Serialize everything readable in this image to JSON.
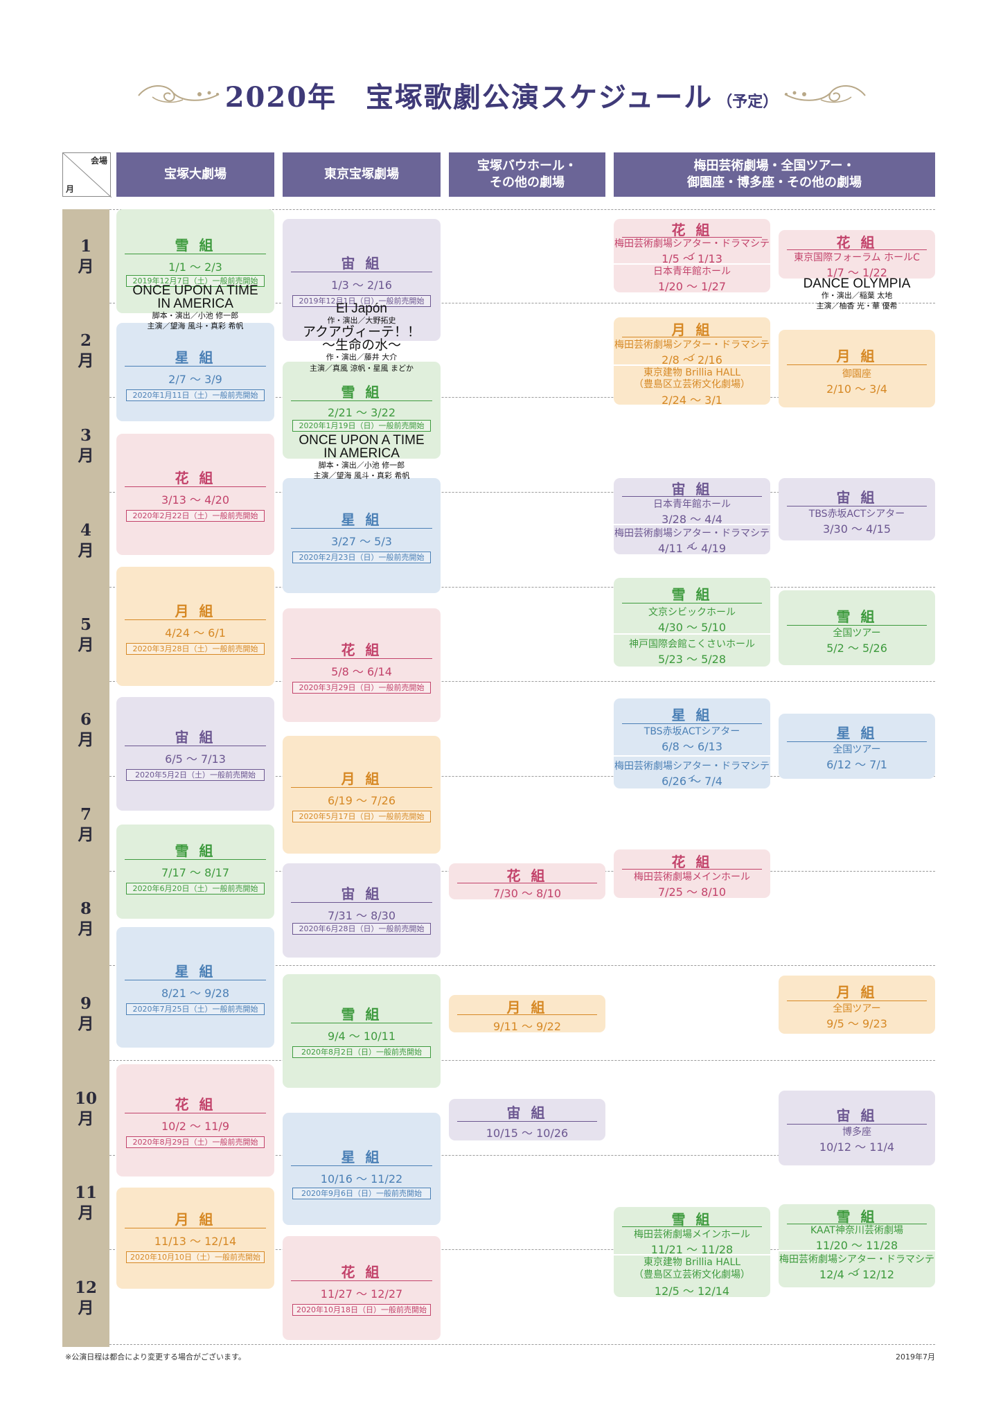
{
  "title": {
    "main": "2020年　宝塚歌劇公演スケジュール",
    "sub": "（予定）"
  },
  "corner": {
    "venue": "会場",
    "month": "月"
  },
  "headers": {
    "col1": "宝塚大劇場",
    "col2": "東京宝塚劇場",
    "col3_l1": "宝塚バウホール・",
    "col3_l2": "その他の劇場",
    "col4_l1": "梅田芸術劇場・全国ツアー・",
    "col4_l2": "御園座・博多座・その他の劇場"
  },
  "months": [
    "1\n月",
    "2\n月",
    "3\n月",
    "4\n月",
    "5\n月",
    "6\n月",
    "7\n月",
    "8\n月",
    "9\n月",
    "10\n月",
    "11\n月",
    "12\n月"
  ],
  "troupes": {
    "flower": "花 組",
    "moon": "月 組",
    "snow": "雪 組",
    "star": "星 組",
    "cosmos": "宙 組"
  },
  "takarazuka": [
    {
      "date": "1/1 〜 2/3",
      "sale": "2019年12月7日（土）一般前売開始"
    },
    {
      "date": "2/7 〜 3/9",
      "sale": "2020年1月11日（土）一般前売開始"
    },
    {
      "date": "3/13 〜 4/20",
      "sale": "2020年2月22日（土）一般前売開始"
    },
    {
      "date": "4/24 〜 6/1",
      "sale": "2020年3月28日（土）一般前売開始"
    },
    {
      "date": "6/5 〜 7/13",
      "sale": "2020年5月2日（土）一般前売開始"
    },
    {
      "date": "7/17 〜 8/17",
      "sale": "2020年6月20日（土）一般前売開始"
    },
    {
      "date": "8/21 〜 9/28",
      "sale": "2020年7月25日（土）一般前売開始"
    },
    {
      "date": "10/2 〜 11/9",
      "sale": "2020年8月29日（土）一般前売開始"
    },
    {
      "date": "11/13 〜 12/14",
      "sale": "2020年10月10日（土）一般前売開始"
    }
  ],
  "tokyo": [
    {
      "date": "1/3 〜 2/16",
      "sale": "2019年12月1日（日）一般前売開始"
    },
    {
      "date": "2/21 〜 3/22",
      "sale": "2020年1月19日（日）一般前売開始"
    },
    {
      "date": "3/27 〜 5/3",
      "sale": "2020年2月23日（日）一般前売開始"
    },
    {
      "date": "5/8 〜 6/14",
      "sale": "2020年3月29日（日）一般前売開始"
    },
    {
      "date": "6/19 〜 7/26",
      "sale": "2020年5月17日（日）一般前売開始"
    },
    {
      "date": "7/31 〜 8/30",
      "sale": "2020年6月28日（日）一般前売開始"
    },
    {
      "date": "9/4 〜 10/11",
      "sale": "2020年8月2日（日）一般前売開始"
    },
    {
      "date": "10/16 〜 11/22",
      "sale": "2020年9月6日（日）一般前売開始"
    },
    {
      "date": "11/27 〜 12/27",
      "sale": "2020年10月18日（日）一般前売開始"
    }
  ],
  "bow": [
    {
      "date": "7/30 〜 8/10"
    },
    {
      "date": "9/11 〜 9/22"
    },
    {
      "date": "10/15 〜 10/26"
    }
  ],
  "other_a": [
    {
      "v1": "梅田芸術劇場シアター・ドラマシティ",
      "d1": "1/5 〜 1/13",
      "v2": "日本青年館ホール",
      "d2": "1/20 〜 1/27"
    },
    {
      "v1": "梅田芸術劇場シアター・ドラマシティ",
      "d1": "2/8 〜 2/16",
      "v2a": "東京建物 Brillia HALL",
      "v2b": "（豊島区立芸術文化劇場）",
      "d2": "2/24 〜 3/1"
    },
    {
      "v1": "日本青年館ホール",
      "d1": "3/28 〜 4/4",
      "v2": "梅田芸術劇場シアター・ドラマシティ",
      "d2": "4/11 〜 4/19"
    },
    {
      "v1": "文京シビックホール",
      "d1": "4/30 〜 5/10",
      "v2": "神戸国際会館こくさいホール",
      "d2": "5/23 〜 5/28"
    },
    {
      "v1": "TBS赤坂ACTシアター",
      "d1": "6/8 〜 6/13",
      "v2": "梅田芸術劇場シアター・ドラマシティ",
      "d2": "6/26 〜 7/4"
    },
    {
      "v1": "梅田芸術劇場メインホール",
      "d1": "7/25 〜 8/10"
    },
    {
      "v1": "梅田芸術劇場メインホール",
      "d1": "11/21 〜 11/28",
      "v2a": "東京建物 Brillia HALL",
      "v2b": "（豊島区立芸術文化劇場）",
      "d2": "12/5 〜 12/14"
    }
  ],
  "other_b": [
    {
      "v1": "東京国際フォーラム ホールC",
      "d1": "1/7 〜 1/22"
    },
    {
      "v1": "御園座",
      "d1": "2/10 〜 3/4"
    },
    {
      "v1": "TBS赤坂ACTシアター",
      "d1": "3/30 〜 4/15"
    },
    {
      "v1": "全国ツアー",
      "d1": "5/2 〜 5/26"
    },
    {
      "v1": "全国ツアー",
      "d1": "6/12 〜 7/1"
    },
    {
      "v1": "全国ツアー",
      "d1": "9/5 〜 9/23"
    },
    {
      "v1": "博多座",
      "d1": "10/12 〜 11/4"
    },
    {
      "v1": "KAAT神奈川芸術劇場",
      "d1": "11/20 〜 11/28",
      "v2": "梅田芸術劇場シアター・ドラマシティ",
      "d2": "12/4 〜 12/12"
    }
  ],
  "overlays": {
    "t1_title": "ONCE UPON A TIME\nIN AMERICA",
    "t1_credit": "脚本・演出／小池 修一郎",
    "t1_cast": "主演／望海 風斗・真彩 希帆",
    "k1_title1": "El Japón",
    "k1_credit1": "作・演出／大野拓史",
    "k1_title2": "アクアヴィーテ！！\n〜生命の水〜",
    "k1_credit2": "作・演出／藤井 大介",
    "k1_cast": "主演／真風 涼帆・星風 まどか",
    "k2_title": "ONCE UPON A TIME\nIN AMERICA",
    "k2_credit": "脚本・演出／小池 修一郎",
    "k2_cast": "主演／望海 風斗・真彩 希帆",
    "d_title": "DANCE OLYMPIA",
    "d_credit": "作・演出／稲葉 太地",
    "d_cast": "主演／柚香 光・華 優希"
  },
  "footer": {
    "note": "※公演日程は都合により変更する場合がございます。",
    "date": "2019年7月"
  },
  "colors": {
    "header": "#6b6597",
    "month_col": "#c9bea4"
  }
}
